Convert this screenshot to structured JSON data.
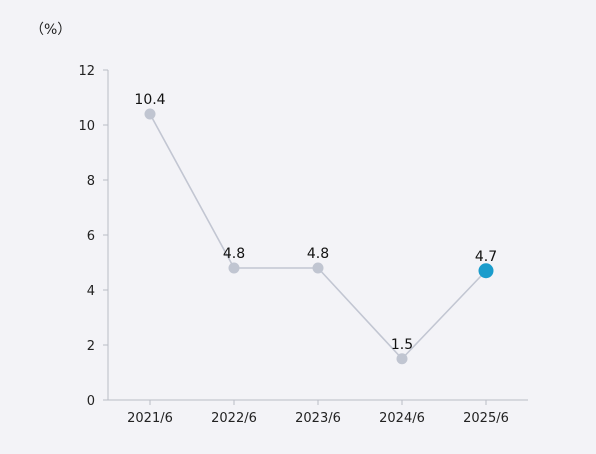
{
  "chart_data": {
    "type": "line",
    "unit_label": "（%）",
    "categories": [
      "2021/6",
      "2022/6",
      "2023/6",
      "2024/6",
      "2025/6"
    ],
    "values": [
      10.4,
      4.8,
      4.8,
      1.5,
      4.7
    ],
    "data_labels": [
      "10.4",
      "4.8",
      "4.8",
      "1.5",
      "4.7"
    ],
    "ylim": [
      0,
      12
    ],
    "yticks": [
      0,
      2,
      4,
      6,
      8,
      10,
      12
    ],
    "ytick_labels": [
      "0",
      "2",
      "4",
      "6",
      "8",
      "10",
      "12"
    ],
    "grid": false,
    "colors": {
      "line": "#c2c6d2",
      "point": "#c0c5d1",
      "highlight_point": "#1a9ccc",
      "axis": "#b9bcc6"
    },
    "highlight_index": 4
  }
}
